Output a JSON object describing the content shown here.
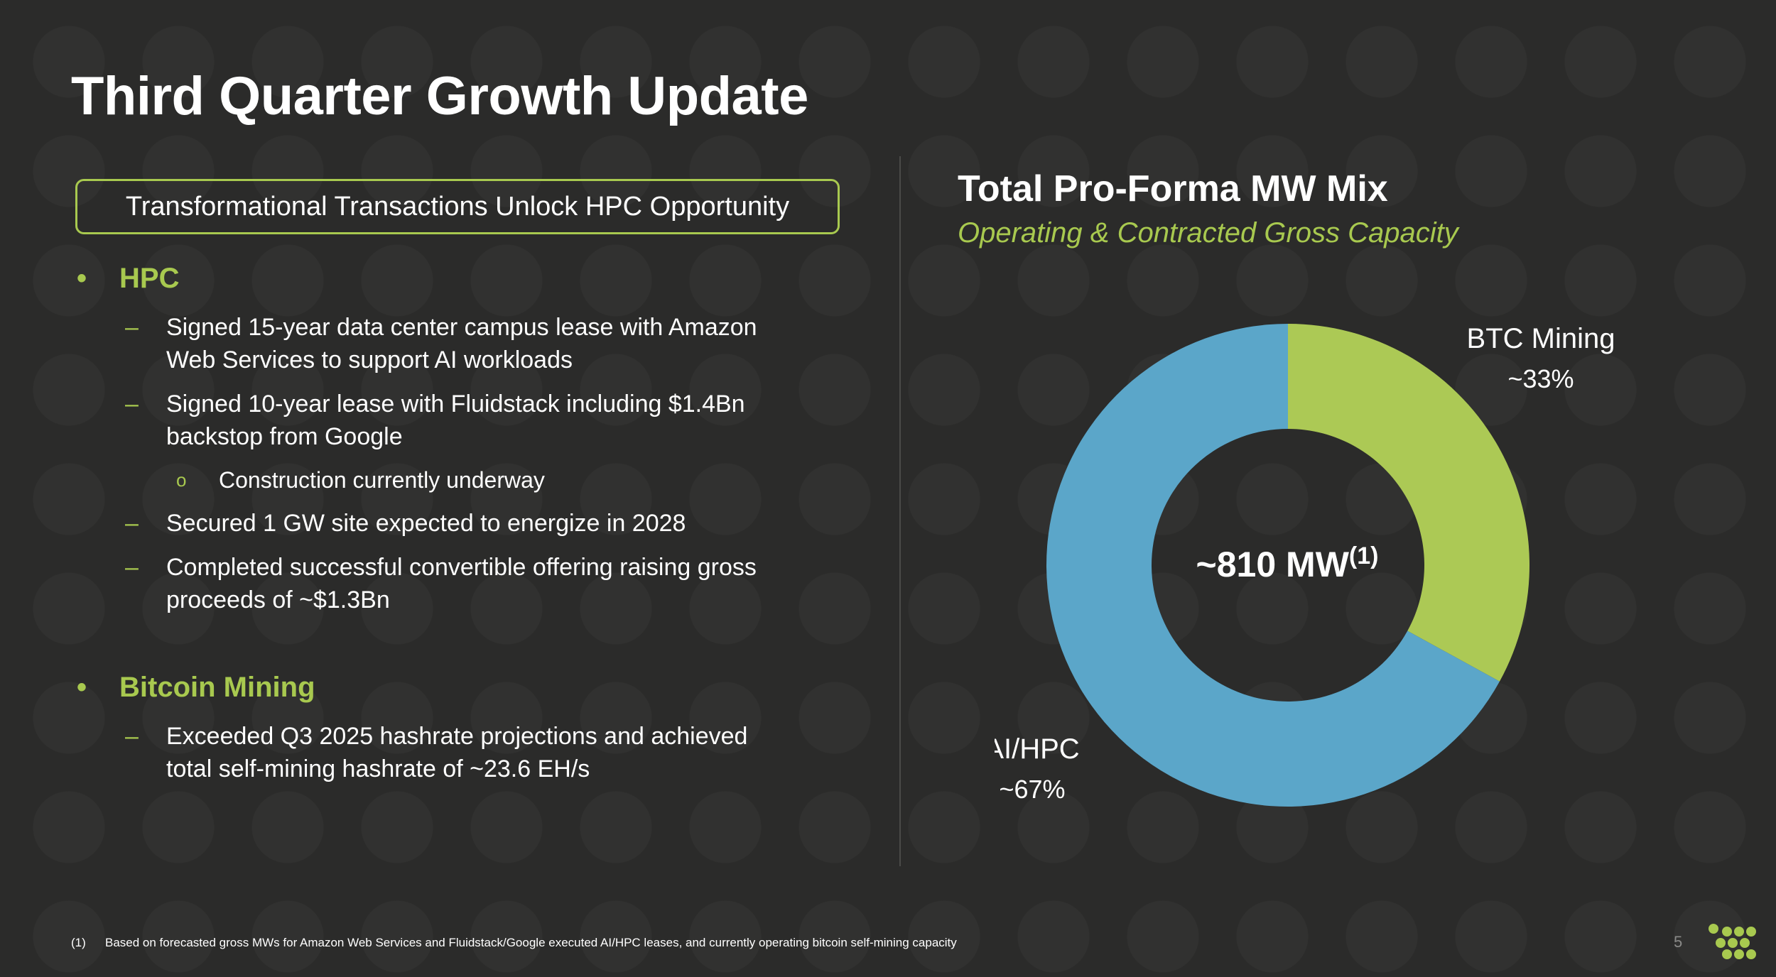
{
  "slide": {
    "title": "Third Quarter Growth Update",
    "section_heading": "Transformational Transactions Unlock HPC Opportunity",
    "page_number": "5"
  },
  "bullets": {
    "hpc": {
      "heading": "HPC",
      "items": {
        "aws_line1": "Signed 15-year data center campus lease with Amazon",
        "aws_line2": "Web Services to support AI workloads",
        "fluid_line1": "Signed 10-year lease with Fluidstack including $1.4Bn",
        "fluid_line2": "backstop from Google",
        "fluid_sub": "Construction currently underway",
        "site": "Secured 1 GW site expected to energize in 2028",
        "conv_line1": "Completed successful convertible offering raising gross",
        "conv_line2": "proceeds of ~$1.3Bn"
      }
    },
    "btc": {
      "heading": "Bitcoin Mining",
      "items": {
        "hash_line1": "Exceeded Q3 2025 hashrate projections and achieved",
        "hash_line2": "total self-mining hashrate of ~23.6 EH/s"
      }
    },
    "markers": {
      "bullet": "•",
      "dash": "–",
      "ring": "o"
    }
  },
  "chart_data": {
    "type": "pie",
    "donut": true,
    "title": "Total Pro-Forma MW Mix",
    "subtitle": "Operating & Contracted Gross Capacity",
    "center_label": "~810 MW",
    "center_superscript": "(1)",
    "slices": [
      {
        "name": "BTC Mining",
        "label": "~33%",
        "value": 33,
        "color": "#acc955"
      },
      {
        "name": "AI/HPC",
        "label": "~67%",
        "value": 67,
        "color": "#5ba6c9"
      }
    ]
  },
  "footnote": {
    "mark": "(1)",
    "text": "Based on forecasted gross MWs for Amazon Web Services and Fluidstack/Google executed AI/HPC leases, and currently operating bitcoin self-mining capacity"
  },
  "colors": {
    "background": "#2b2b2a",
    "accent_green": "#a8c94f",
    "accent_blue": "#5ba6c9"
  }
}
